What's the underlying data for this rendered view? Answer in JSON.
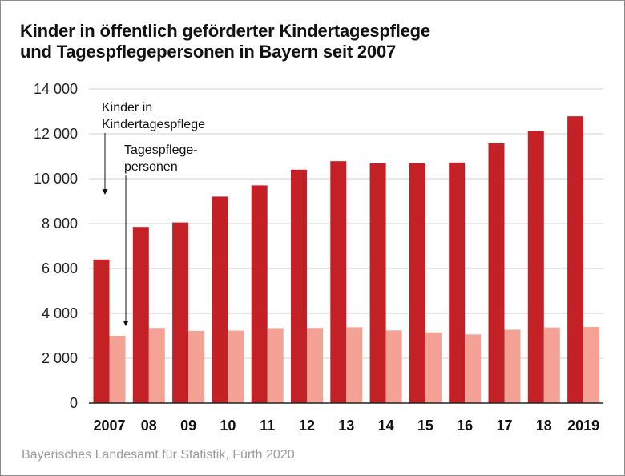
{
  "title_lines": [
    "Kinder in öffentlich geförderter Kindertagespflege",
    "und Tagespflegepersonen in Bayern seit 2007"
  ],
  "source": "Bayerisches Landesamt für Statistik, Fürth 2020",
  "colors": {
    "kinder": "#c42127",
    "tagespflegepersonen": "#f4a296",
    "grid": "#cfcfcf",
    "axis": "#222222"
  },
  "chart_data": {
    "type": "bar",
    "title": "Kinder in öffentlich geförderter Kindertagespflege und Tagespflegepersonen in Bayern seit 2007",
    "categories": [
      "2007",
      "08",
      "09",
      "10",
      "11",
      "12",
      "13",
      "14",
      "15",
      "16",
      "17",
      "18",
      "2019"
    ],
    "series": [
      {
        "name": "Kinder in Kindertagespflege",
        "values": [
          6400,
          7850,
          8050,
          9200,
          9700,
          10400,
          10780,
          10680,
          10680,
          10720,
          11580,
          12120,
          12780
        ]
      },
      {
        "name": "Tagespflegepersonen",
        "values": [
          3000,
          3350,
          3220,
          3230,
          3340,
          3350,
          3380,
          3240,
          3150,
          3060,
          3270,
          3370,
          3390
        ]
      }
    ],
    "yticks": [
      0,
      2000,
      4000,
      6000,
      8000,
      10000,
      12000,
      14000
    ],
    "ytick_labels": [
      "0",
      "2 000",
      "4 000",
      "6 000",
      "8 000",
      "10 000",
      "12 000",
      "14 000"
    ],
    "ylim": [
      0,
      14000
    ],
    "grid": true,
    "annotations": [
      {
        "lines": [
          "Kinder in",
          "Kindertagespflege"
        ],
        "series": 0,
        "category": 0
      },
      {
        "lines": [
          "Tagespflege-",
          "personen"
        ],
        "series": 1,
        "category": 0
      }
    ]
  }
}
